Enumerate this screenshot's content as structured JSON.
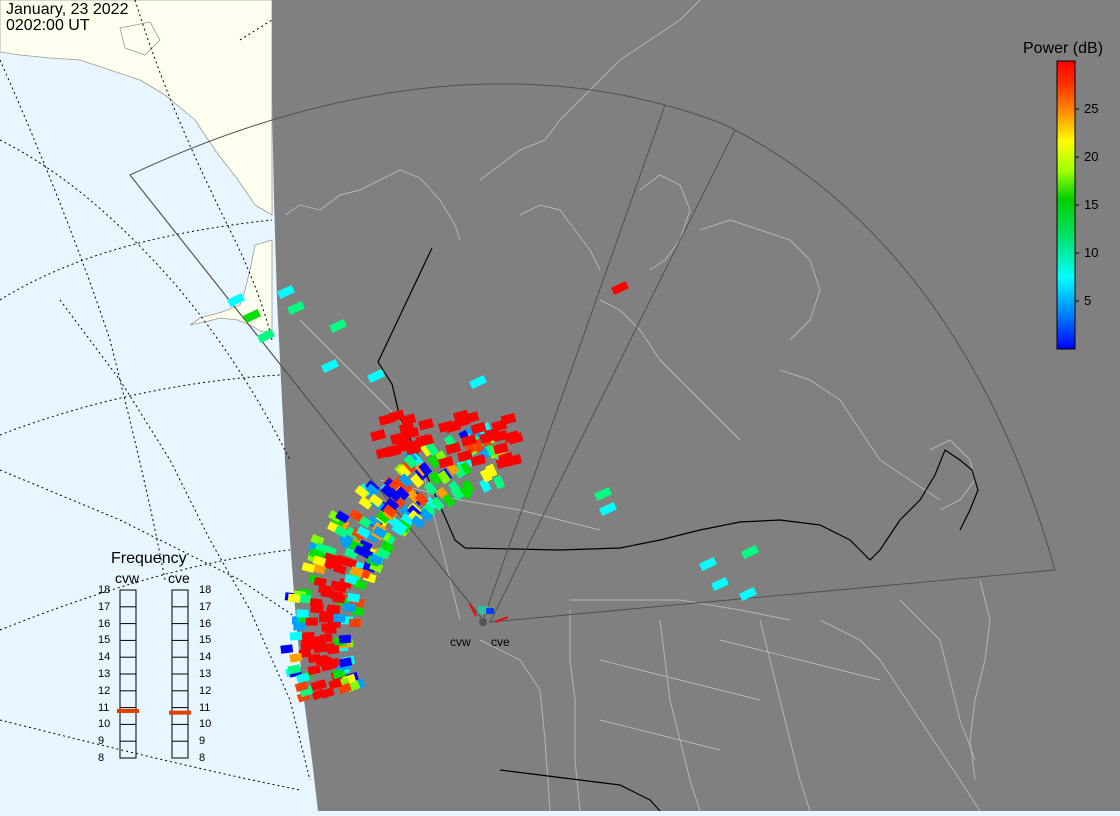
{
  "header": {
    "date": "January, 23 2022",
    "time": "0202:00 UT"
  },
  "colorbar": {
    "title": "Power (dB)",
    "ticks": [
      "25",
      "20",
      "15",
      "10",
      "5"
    ],
    "tick_values": [
      25,
      20,
      15,
      10,
      5
    ],
    "range": [
      0,
      30
    ],
    "colors": [
      "#0000ff",
      "#00a0ff",
      "#00ffff",
      "#00ff80",
      "#00e000",
      "#80ff00",
      "#ffff00",
      "#ffa000",
      "#ff4000",
      "#ff0000"
    ]
  },
  "frequency": {
    "title": "Frequency",
    "radars": [
      {
        "name": "cvw",
        "selected_mhz": 10.8
      },
      {
        "name": "cve",
        "selected_mhz": 10.7
      }
    ],
    "scale_labels": [
      "18",
      "17",
      "16",
      "15",
      "14",
      "13",
      "12",
      "11",
      "10",
      "9",
      "8"
    ],
    "marker_color": "#e04000"
  },
  "radar_labels": {
    "west": "cvw",
    "east": "cve"
  },
  "map_colors": {
    "ocean": "#e8f6ff",
    "land": "#fffff0",
    "night": "#808080",
    "boundary": "#b4b4b4",
    "fov": "#505050"
  }
}
